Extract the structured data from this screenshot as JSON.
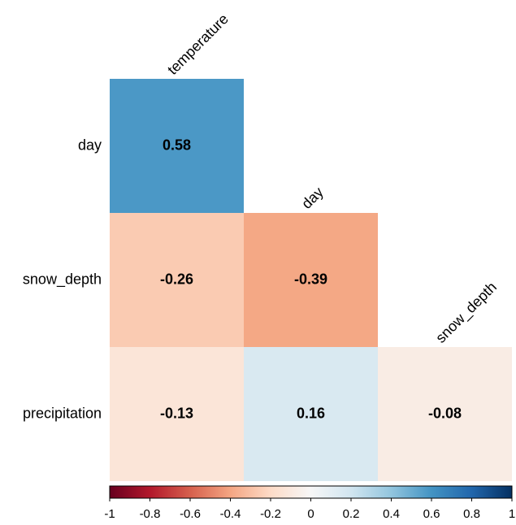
{
  "chart_data": {
    "type": "heatmap",
    "rows": [
      "day",
      "snow_depth",
      "precipitation"
    ],
    "columns": [
      "temperature",
      "day",
      "snow_depth"
    ],
    "values": [
      [
        0.58,
        null,
        null
      ],
      [
        -0.26,
        -0.39,
        null
      ],
      [
        -0.13,
        0.16,
        -0.08
      ]
    ],
    "colorscale": [
      "#67001f",
      "#b2182b",
      "#d6604d",
      "#f4a582",
      "#fddbc7",
      "#f7f7f7",
      "#d1e5f0",
      "#92c5de",
      "#4393c3",
      "#2166ac",
      "#053061"
    ],
    "clim": [
      -1,
      1
    ],
    "colorbar_ticks": [
      -1,
      -0.8,
      -0.6,
      -0.4,
      -0.2,
      0,
      0.2,
      0.4,
      0.6,
      0.8,
      1
    ]
  }
}
